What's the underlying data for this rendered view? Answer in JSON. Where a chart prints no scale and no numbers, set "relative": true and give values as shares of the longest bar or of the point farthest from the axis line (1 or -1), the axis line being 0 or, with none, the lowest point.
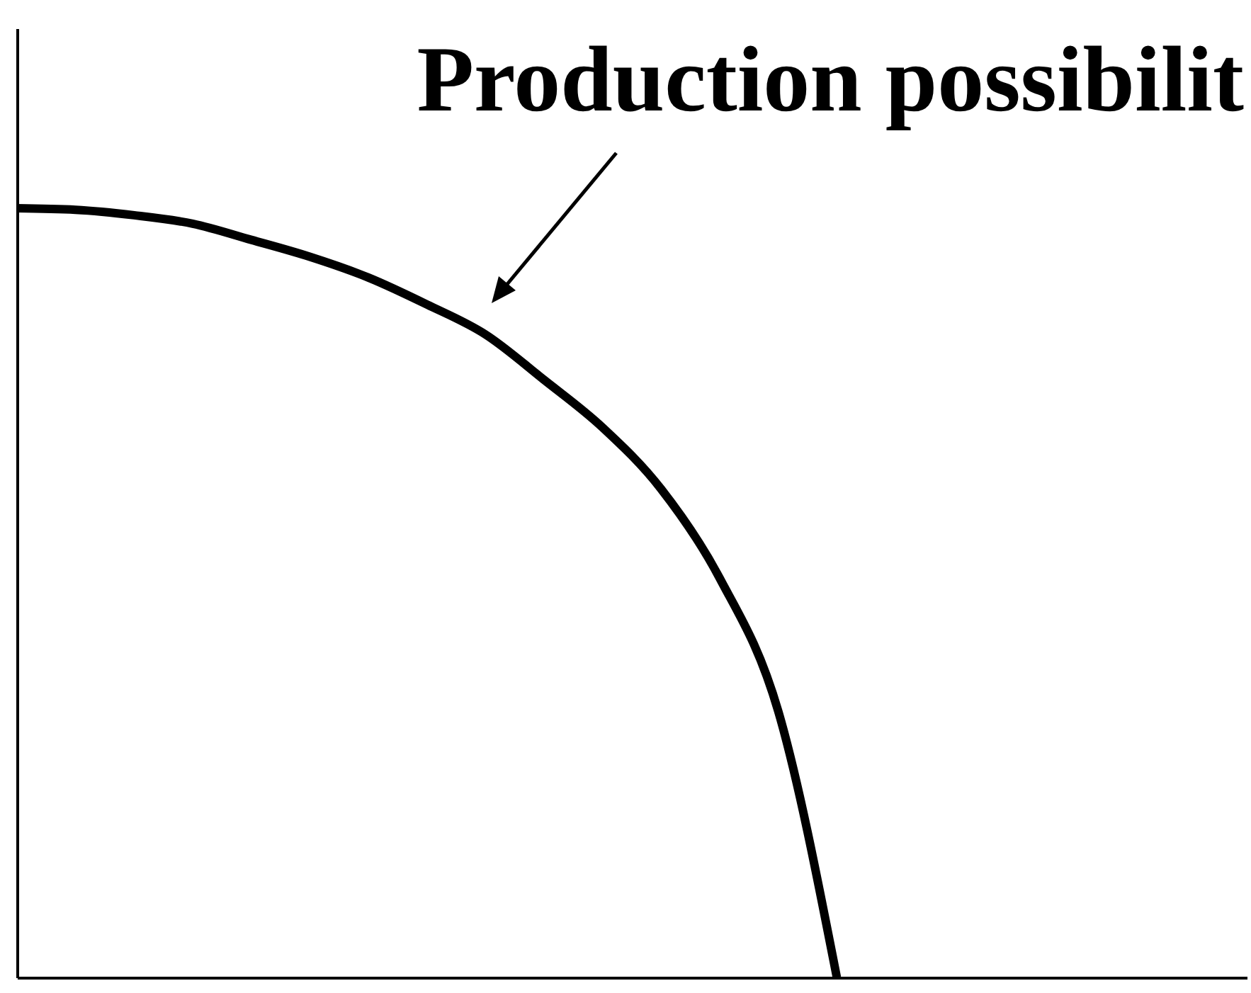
{
  "chart_data": {
    "type": "line",
    "relative": true,
    "categories": [
      null,
      null,
      null,
      null,
      null,
      null,
      null,
      null,
      null,
      null,
      null,
      null,
      null,
      null,
      null,
      null,
      null,
      null,
      null,
      null,
      null,
      null
    ],
    "series": [
      {
        "color": "#000000",
        "values": [
          1,
          0.998,
          0.991,
          0.98,
          0.959,
          0.937,
          0.91,
          0.875,
          0.836,
          0.777,
          0.715,
          0.635,
          0.519,
          0.346,
          0,
          null,
          null,
          null,
          null,
          null,
          null,
          null
        ]
      }
    ],
    "annotations": [
      "Production possibilit"
    ]
  }
}
